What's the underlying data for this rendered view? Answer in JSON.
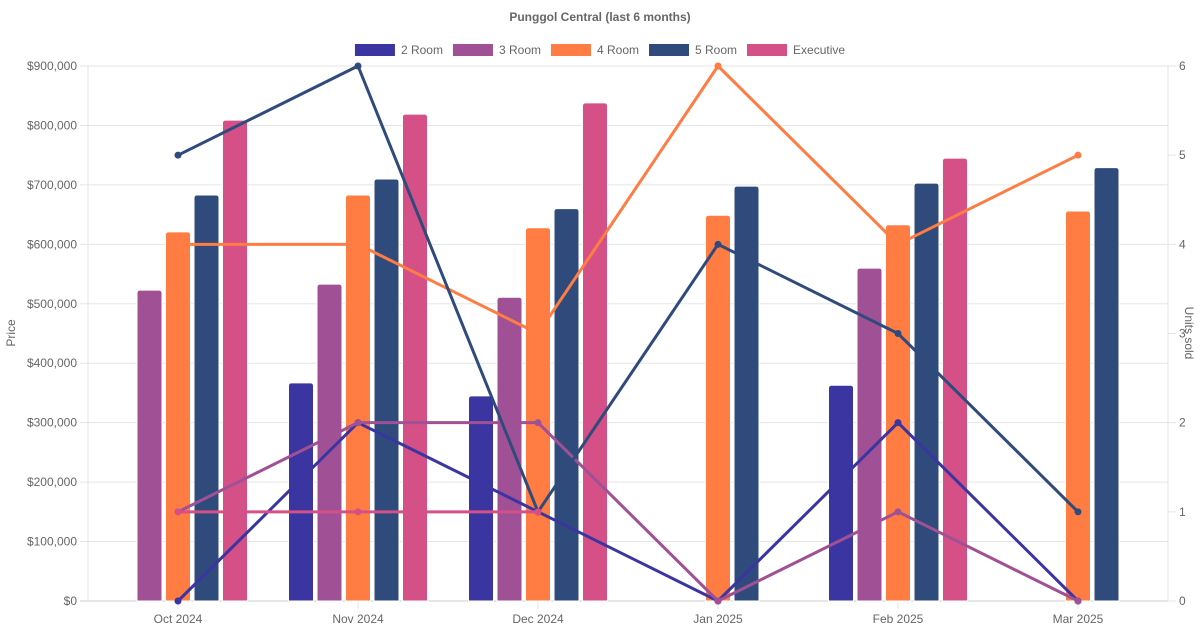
{
  "chart_data": {
    "type": "bar",
    "title": "Punggol Central (last 6 months)",
    "categories": [
      "Oct 2024",
      "Nov 2024",
      "Dec 2024",
      "Jan 2025",
      "Feb 2025",
      "Mar 2025"
    ],
    "ylabel": "Price",
    "y2label": "Units sold",
    "ylim": [
      0,
      900000
    ],
    "y2lim": [
      0,
      6
    ],
    "yticks": [
      "$0",
      "$100,000",
      "$200,000",
      "$300,000",
      "$400,000",
      "$500,000",
      "$600,000",
      "$700,000",
      "$800,000",
      "$900,000"
    ],
    "y2ticks": [
      "0",
      "1",
      "2",
      "3",
      "4",
      "5",
      "6"
    ],
    "legend_position": "top",
    "grid": true,
    "series": [
      {
        "name": "2 Room",
        "color": "#3a35a0",
        "price": [
          null,
          367000,
          345000,
          null,
          363000,
          null
        ],
        "units": [
          0,
          2,
          1,
          0,
          2,
          0
        ]
      },
      {
        "name": "3 Room",
        "color": "#a05195",
        "price": [
          523000,
          533000,
          511000,
          null,
          560000,
          null
        ],
        "units": [
          1,
          2,
          2,
          0,
          1,
          0
        ]
      },
      {
        "name": "4 Room",
        "color": "#ff7c43",
        "price": [
          621000,
          683000,
          628000,
          649000,
          633000,
          656000
        ],
        "units": [
          4,
          4,
          3,
          6,
          4,
          5
        ]
      },
      {
        "name": "5 Room",
        "color": "#2f4b7c",
        "price": [
          683000,
          710000,
          660000,
          698000,
          703000,
          729000
        ],
        "units": [
          5,
          6,
          1,
          4,
          3,
          1
        ]
      },
      {
        "name": "Executive",
        "color": "#d45087",
        "price": [
          809000,
          819000,
          838000,
          null,
          745000,
          null
        ],
        "units": [
          1,
          1,
          1,
          null,
          null,
          null
        ]
      }
    ]
  }
}
